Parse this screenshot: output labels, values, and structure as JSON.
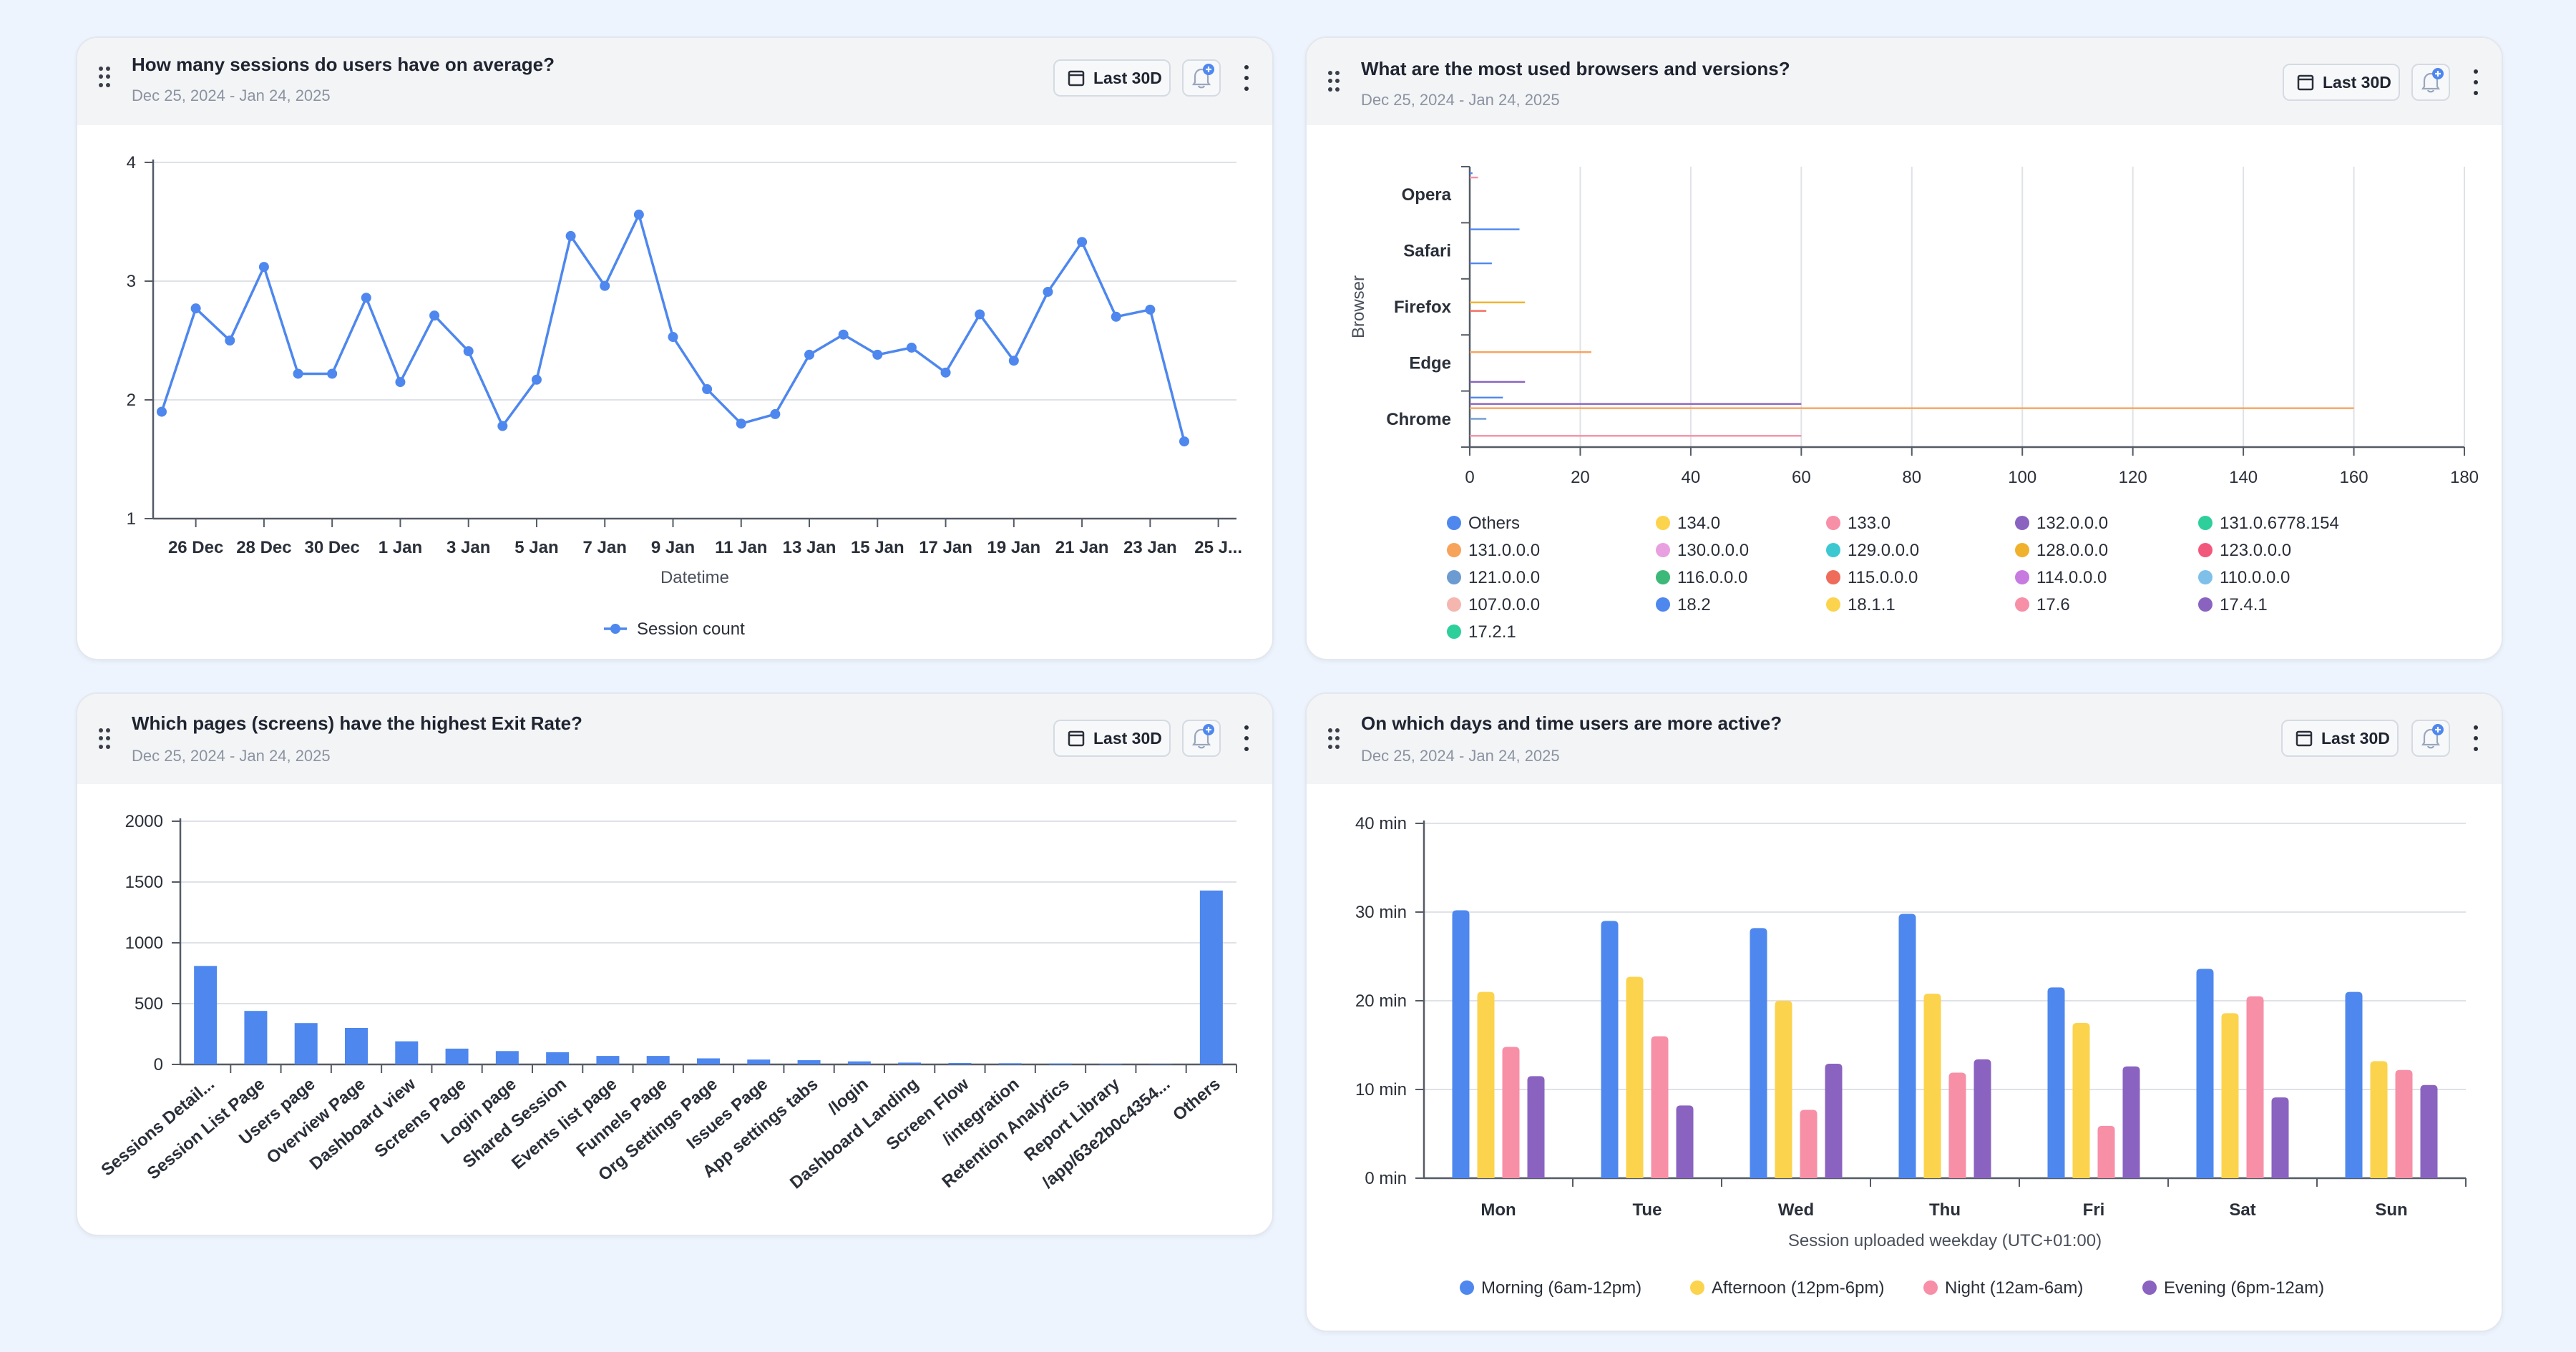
{
  "controls": {
    "range_label": "Last 30D"
  },
  "colors": {
    "blue": "#4e87ee",
    "yellow": "#fcd34d",
    "pink": "#f78fa7",
    "purple": "#8a63c0"
  },
  "cards": [
    {
      "title": "How many sessions do users have on average?",
      "date": "Dec 25, 2024 - Jan 24, 2025",
      "chart_data": {
        "type": "line",
        "title": "How many sessions do users have on average?",
        "xlabel": "Datetime",
        "ylabel": "",
        "ylim": [
          1,
          4
        ],
        "yticks": [
          "1",
          "2",
          "3",
          "4"
        ],
        "x_tick_labels": [
          "26 Dec",
          "28 Dec",
          "30 Dec",
          "1 Jan",
          "3 Jan",
          "5 Jan",
          "7 Jan",
          "9 Jan",
          "11 Jan",
          "13 Jan",
          "15 Jan",
          "17 Jan",
          "19 Jan",
          "21 Jan",
          "23 Jan",
          "25 J..."
        ],
        "series": [
          {
            "name": "Session count",
            "color": "#4e87ee",
            "values": [
              1.9,
              2.77,
              2.5,
              3.12,
              2.22,
              2.22,
              2.86,
              2.15,
              2.71,
              2.41,
              1.78,
              2.17,
              3.38,
              2.96,
              3.56,
              2.53,
              2.09,
              1.8,
              1.88,
              2.38,
              2.55,
              2.38,
              2.44,
              2.23,
              2.72,
              2.33,
              2.91,
              3.33,
              2.7,
              2.76,
              1.65
            ]
          }
        ],
        "legend": "bottom"
      }
    },
    {
      "title": "What are the most used browsers and versions?",
      "date": "Dec 25, 2024 - Jan 24, 2025",
      "chart_data": {
        "type": "bar",
        "orientation": "horizontal",
        "title": "What are the most used browsers and versions?",
        "ylabel": "Browser",
        "xlabel": "",
        "xlim": [
          0,
          180
        ],
        "xticks": [
          "0",
          "20",
          "40",
          "60",
          "80",
          "100",
          "120",
          "140",
          "160",
          "180"
        ],
        "categories": [
          "Opera",
          "Safari",
          "Firefox",
          "Edge",
          "Chrome"
        ],
        "series": [
          {
            "name": "Others",
            "color": "#4e87ee",
            "values": {
              "Opera": 0.5,
              "Safari": 9,
              "Chrome": 6
            }
          },
          {
            "name": "134.0",
            "color": "#fcd34d",
            "values": {}
          },
          {
            "name": "133.0",
            "color": "#f78fa7",
            "values": {
              "Opera": 1.5
            }
          },
          {
            "name": "132.0.0.0",
            "color": "#8a63c0",
            "values": {
              "Chrome": 60
            }
          },
          {
            "name": "131.0.6778.154",
            "color": "#2ecf9a",
            "values": {}
          },
          {
            "name": "131.0.0.0",
            "color": "#f7a35c",
            "values": {
              "Edge": 22,
              "Chrome": 160
            }
          },
          {
            "name": "130.0.0.0",
            "color": "#e9a0e0",
            "values": {}
          },
          {
            "name": "129.0.0.0",
            "color": "#3cc8d0",
            "values": {}
          },
          {
            "name": "128.0.0.0",
            "color": "#f0b12d",
            "values": {
              "Firefox": 10
            }
          },
          {
            "name": "123.0.0.0",
            "color": "#f2577c",
            "values": {}
          },
          {
            "name": "121.0.0.0",
            "color": "#6c9bd2",
            "values": {
              "Chrome": 3
            }
          },
          {
            "name": "116.0.0.0",
            "color": "#3cb878",
            "values": {}
          },
          {
            "name": "115.0.0.0",
            "color": "#ef6b5a",
            "values": {
              "Firefox": 3
            }
          },
          {
            "name": "114.0.0.0",
            "color": "#c77be0",
            "values": {}
          },
          {
            "name": "110.0.0.0",
            "color": "#7ec0ea",
            "values": {}
          },
          {
            "name": "107.0.0.0",
            "color": "#f4b6ae",
            "values": {}
          },
          {
            "name": "18.2",
            "color": "#4e87ee",
            "values": {
              "Safari": 4
            }
          },
          {
            "name": "18.1.1",
            "color": "#fcd34d",
            "values": {}
          },
          {
            "name": "17.6",
            "color": "#f78fa7",
            "values": {
              "Chrome": 60
            }
          },
          {
            "name": "17.4.1",
            "color": "#8a63c0",
            "values": {
              "Edge": 10
            }
          },
          {
            "name": "17.2.1",
            "color": "#2ecf9a",
            "values": {}
          }
        ],
        "legend": "bottom"
      }
    },
    {
      "title": "Which pages (screens) have the highest Exit Rate?",
      "date": "Dec 25, 2024 - Jan 24, 2025",
      "chart_data": {
        "type": "bar",
        "title": "Which pages (screens) have the highest Exit Rate?",
        "xlabel": "",
        "ylabel": "",
        "ylim": [
          0,
          2000
        ],
        "yticks": [
          "0",
          "500",
          "1000",
          "1500",
          "2000"
        ],
        "categories": [
          "Sessions Detail...",
          "Session List Page",
          "Users page",
          "Overview Page",
          "Dashboard view",
          "Screens Page",
          "Login page",
          "Shared Session",
          "Events list page",
          "Funnels Page",
          "Org Settings Page",
          "Issues Page",
          "App settings tabs",
          "/login",
          "Dashboard Landing",
          "Screen Flow",
          "/integration",
          "Retention Analytics",
          "Report Library",
          "/app/63e2b0c4354...",
          "Others"
        ],
        "values": [
          810,
          440,
          340,
          300,
          190,
          130,
          110,
          100,
          70,
          70,
          50,
          40,
          35,
          25,
          15,
          12,
          10,
          8,
          5,
          3,
          1430
        ],
        "color": "#4e87ee"
      }
    },
    {
      "title": "On which days and time users are more active?",
      "date": "Dec 25, 2024 - Jan 24, 2025",
      "chart_data": {
        "type": "bar",
        "title": "On which days and time users are more active?",
        "xlabel": "Session uploaded weekday (UTC+01:00)",
        "ylabel": "",
        "ylim": [
          0,
          40
        ],
        "yticks": [
          "0 min",
          "10 min",
          "20 min",
          "30 min",
          "40 min"
        ],
        "categories": [
          "Mon",
          "Tue",
          "Wed",
          "Thu",
          "Fri",
          "Sat",
          "Sun"
        ],
        "series": [
          {
            "name": "Morning (6am-12pm)",
            "color": "#4e87ee",
            "values": [
              30.2,
              29,
              28.2,
              29.8,
              21.5,
              23.6,
              21
            ]
          },
          {
            "name": "Afternoon (12pm-6pm)",
            "color": "#fcd34d",
            "values": [
              21,
              22.7,
              20,
              20.8,
              17.5,
              18.6,
              13.2
            ]
          },
          {
            "name": "Night (12am-6am)",
            "color": "#f78fa7",
            "values": [
              14.8,
              16,
              7.7,
              11.9,
              5.9,
              20.5,
              12.2
            ]
          },
          {
            "name": "Evening (6pm-12am)",
            "color": "#8a63c0",
            "values": [
              11.5,
              8.2,
              12.9,
              13.4,
              12.6,
              9.1,
              10.5
            ]
          }
        ],
        "legend": "bottom"
      }
    }
  ]
}
